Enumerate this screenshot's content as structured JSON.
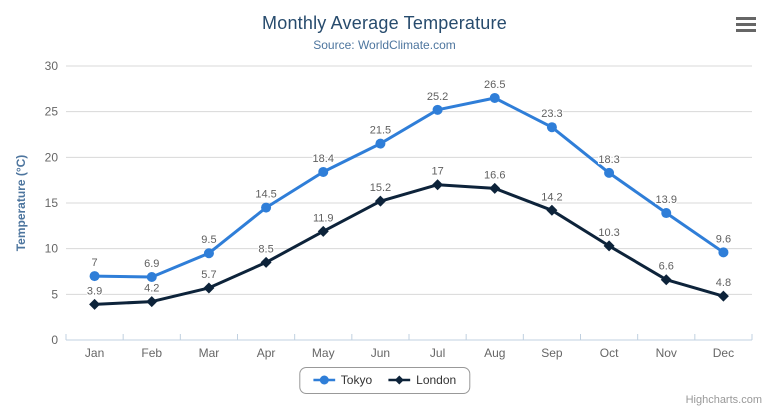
{
  "chart_data": {
    "type": "line",
    "title": "Monthly Average Temperature",
    "subtitle": "Source: WorldClimate.com",
    "categories": [
      "Jan",
      "Feb",
      "Mar",
      "Apr",
      "May",
      "Jun",
      "Jul",
      "Aug",
      "Sep",
      "Oct",
      "Nov",
      "Dec"
    ],
    "series": [
      {
        "name": "Tokyo",
        "color": "#2f7ed8",
        "marker": "circle",
        "values": [
          7,
          6.9,
          9.5,
          14.5,
          18.4,
          21.5,
          25.2,
          26.5,
          23.3,
          18.3,
          13.9,
          9.6
        ]
      },
      {
        "name": "London",
        "color": "#0d233a",
        "marker": "diamond",
        "values": [
          3.9,
          4.2,
          5.7,
          8.5,
          11.9,
          15.2,
          17,
          16.6,
          14.2,
          10.3,
          6.6,
          4.8
        ]
      }
    ],
    "xlabel": "",
    "ylabel": "Temperature (°C)",
    "ylim": [
      0,
      30
    ],
    "yticks": [
      0,
      5,
      10,
      15,
      20,
      25,
      30
    ],
    "grid": true,
    "data_labels": true,
    "legend_position": "bottom",
    "credits": "Highcharts.com",
    "theme": {
      "title_color": "#274b6d",
      "subtitle_color": "#4d759e",
      "axis_label_color": "#666666",
      "axis_title_color": "#4d759e",
      "grid_color": "#d8d8d8",
      "axis_line_color": "#c0d0e0",
      "data_label_color": "#606060",
      "legend_text_color": "#333333",
      "credits_color": "#999999",
      "menu_icon_color": "#666666"
    }
  }
}
